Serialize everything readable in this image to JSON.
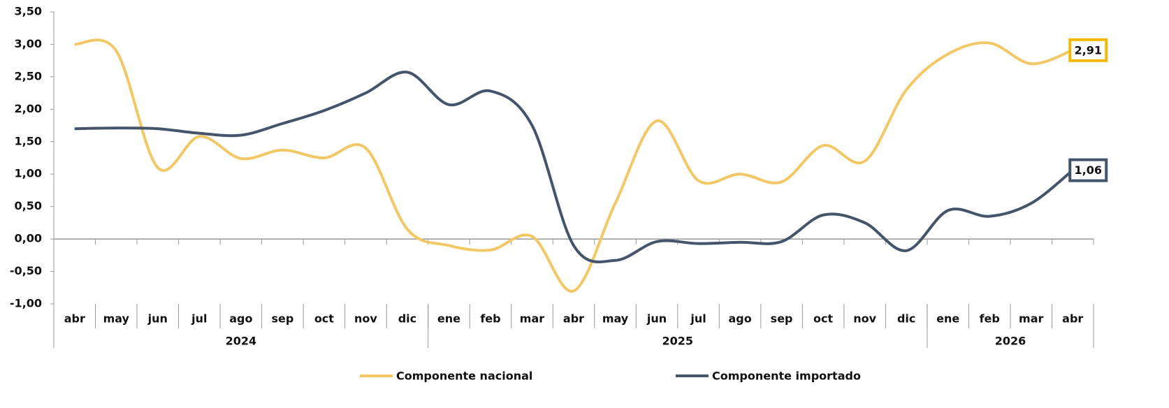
{
  "chart_data": {
    "type": "line",
    "category_groups": [
      {
        "label": "2024",
        "categories": [
          "abr",
          "may",
          "jun",
          "jul",
          "ago",
          "sep",
          "oct",
          "nov",
          "dic"
        ]
      },
      {
        "label": "2025",
        "categories": [
          "ene",
          "feb",
          "mar",
          "abr",
          "may",
          "jun",
          "jul",
          "ago",
          "sep",
          "oct",
          "nov",
          "dic"
        ]
      },
      {
        "label": "2026",
        "categories": [
          "ene",
          "feb",
          "mar",
          "abr"
        ]
      }
    ],
    "series": [
      {
        "name": "Componente nacional",
        "color": "#f2c866",
        "label_border": "#f5b800",
        "values": [
          3.0,
          2.9,
          1.1,
          1.58,
          1.24,
          1.37,
          1.25,
          1.4,
          0.15,
          -0.1,
          -0.17,
          0.04,
          -0.8,
          0.55,
          1.82,
          0.9,
          1.0,
          0.88,
          1.44,
          1.2,
          2.3,
          2.85,
          3.02,
          2.7,
          2.91
        ],
        "value_labels": [
          null,
          null,
          null,
          null,
          null,
          null,
          null,
          null,
          null,
          null,
          null,
          null,
          null,
          null,
          null,
          null,
          null,
          null,
          null,
          null,
          null,
          null,
          null,
          null,
          "2,91"
        ]
      },
      {
        "name": "Componente importado",
        "color": "#44546a",
        "label_border": "#44546a",
        "values": [
          1.7,
          1.71,
          1.7,
          1.63,
          1.6,
          1.78,
          1.98,
          2.25,
          2.57,
          2.07,
          2.28,
          1.75,
          -0.1,
          -0.33,
          -0.04,
          -0.07,
          -0.05,
          -0.04,
          0.37,
          0.25,
          -0.18,
          0.44,
          0.35,
          0.55,
          1.06
        ],
        "value_labels": [
          null,
          null,
          null,
          null,
          null,
          null,
          null,
          null,
          null,
          null,
          null,
          null,
          null,
          null,
          null,
          null,
          null,
          null,
          null,
          null,
          null,
          null,
          null,
          null,
          "1,06"
        ]
      }
    ],
    "ylim": [
      -1,
      3.5
    ],
    "yticks": [
      {
        "value": -1,
        "label": "-1,00"
      },
      {
        "value": -0.5,
        "label": "-0,50"
      },
      {
        "value": 0,
        "label": "0,00"
      },
      {
        "value": 0.5,
        "label": "0,50"
      },
      {
        "value": 1,
        "label": "1,00"
      },
      {
        "value": 1.5,
        "label": "1,50"
      },
      {
        "value": 2,
        "label": "2,00"
      },
      {
        "value": 2.5,
        "label": "2,50"
      },
      {
        "value": 3,
        "label": "3,00"
      },
      {
        "value": 3.5,
        "label": "3,50"
      }
    ]
  }
}
